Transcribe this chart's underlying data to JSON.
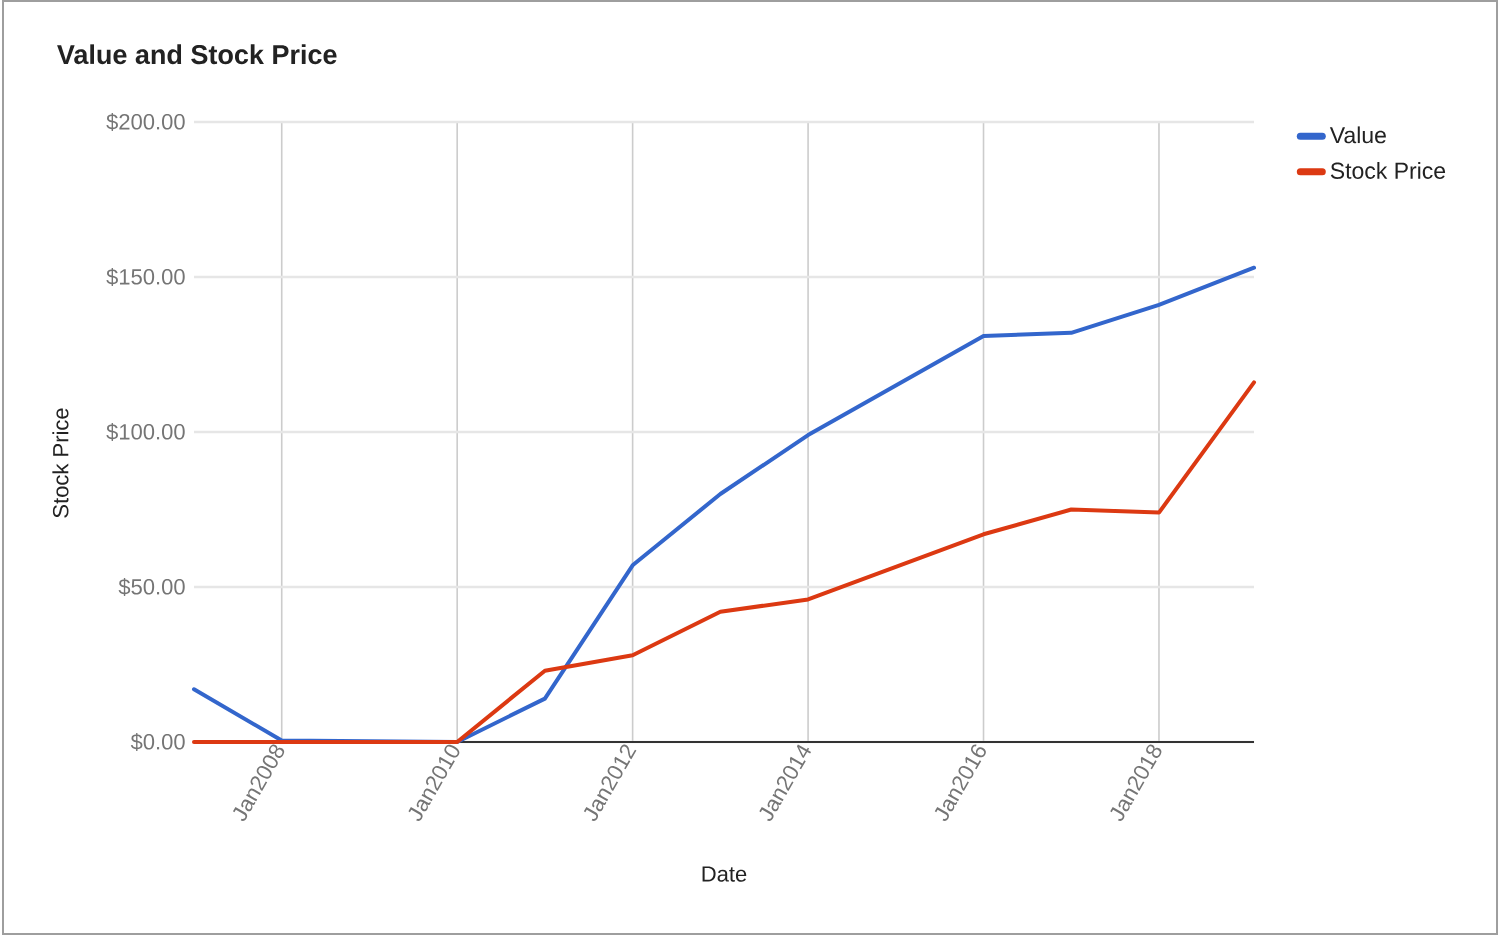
{
  "chart_data": {
    "type": "line",
    "title": "Value and Stock Price",
    "xlabel": "Date",
    "ylabel": "Stock Price",
    "x": [
      "2007-01",
      "2008-01",
      "2010-01",
      "2011-01",
      "2012-01",
      "2013-01",
      "2014-01",
      "2016-01",
      "2017-01",
      "2018-01",
      "2019-02"
    ],
    "series": [
      {
        "name": "Value",
        "color": "#3366cc",
        "values": [
          17,
          0.5,
          0,
          14,
          57,
          80,
          99,
          131,
          132,
          141,
          153
        ]
      },
      {
        "name": "Stock Price",
        "color": "#dc3912",
        "values": [
          0,
          0,
          0,
          23,
          28,
          42,
          46,
          67,
          75,
          74,
          116
        ]
      }
    ],
    "xlim": [
      "2007-01",
      "2019-02"
    ],
    "ylim": [
      0,
      200
    ],
    "xticks": [
      {
        "value": "2008-01",
        "label": "Jan2008"
      },
      {
        "value": "2010-01",
        "label": "Jan2010"
      },
      {
        "value": "2012-01",
        "label": "Jan2012"
      },
      {
        "value": "2014-01",
        "label": "Jan2014"
      },
      {
        "value": "2016-01",
        "label": "Jan2016"
      },
      {
        "value": "2018-01",
        "label": "Jan2018"
      }
    ],
    "yticks": [
      {
        "value": 0,
        "label": "$0.00"
      },
      {
        "value": 50,
        "label": "$50.00"
      },
      {
        "value": 100,
        "label": "$100.00"
      },
      {
        "value": 150,
        "label": "$150.00"
      },
      {
        "value": 200,
        "label": "$200.00"
      }
    ],
    "grid": true,
    "legend": "top right",
    "marker": "none",
    "line_style": "solid"
  }
}
